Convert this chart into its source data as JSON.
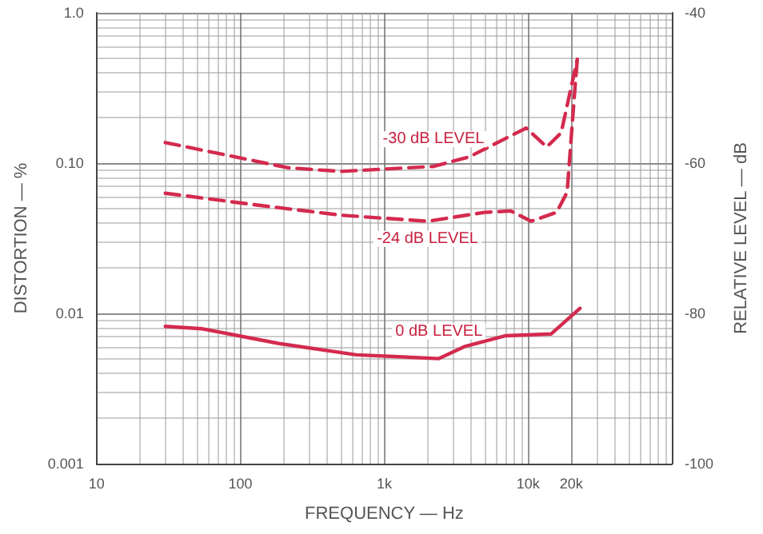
{
  "chart_data": {
    "type": "line",
    "xlabel": "FREQUENCY — Hz",
    "ylabel": "DISTORTION — %",
    "y2label": "RELATIVE LEVEL — dB",
    "log": "xy",
    "grid": true,
    "xlim": [
      10,
      100000
    ],
    "xticks": [
      10,
      100,
      {
        "value": 1000,
        "label": "1k"
      },
      {
        "value": 10000,
        "label": "10k"
      },
      {
        "value": 20000,
        "label": "20k"
      }
    ],
    "ylim": [
      0.001,
      1
    ],
    "yticks": [
      {
        "value": 0.001,
        "label": "0.001"
      },
      {
        "value": 0.01,
        "label": "0.01"
      },
      {
        "value": 0.1,
        "label": "0.10"
      },
      {
        "value": 1,
        "label": "1.0"
      }
    ],
    "y2lim": [
      -100,
      -40
    ],
    "y2ticks": [
      -100,
      -80,
      -60,
      -40
    ],
    "series": [
      {
        "name": "-30 dB LEVEL",
        "color": "#d42a4e",
        "line_style": "dashed",
        "x": [
          30,
          80,
          215,
          500,
          2200,
          3900,
          9700,
          13500,
          17000,
          22000
        ],
        "values": [
          0.137,
          0.113,
          0.093,
          0.088,
          0.095,
          0.11,
          0.171,
          0.128,
          0.159,
          0.49
        ]
      },
      {
        "name": "-24 dB LEVEL",
        "color": "#d42a4e",
        "line_style": "dashed",
        "x": [
          30,
          122,
          500,
          2000,
          5000,
          7600,
          10500,
          15800,
          18700,
          21000,
          22000
        ],
        "values": [
          0.063,
          0.053,
          0.045,
          0.041,
          0.047,
          0.048,
          0.041,
          0.047,
          0.064,
          0.28,
          0.49
        ]
      },
      {
        "name": "0 dB LEVEL",
        "color": "#d42a4e",
        "line_style": "solid",
        "x": [
          30,
          54,
          186,
          640,
          2400,
          3600,
          7000,
          14500,
          23000
        ],
        "values": [
          0.0082,
          0.0079,
          0.0063,
          0.0053,
          0.005,
          0.006,
          0.0071,
          0.0073,
          0.0108
        ]
      }
    ]
  }
}
